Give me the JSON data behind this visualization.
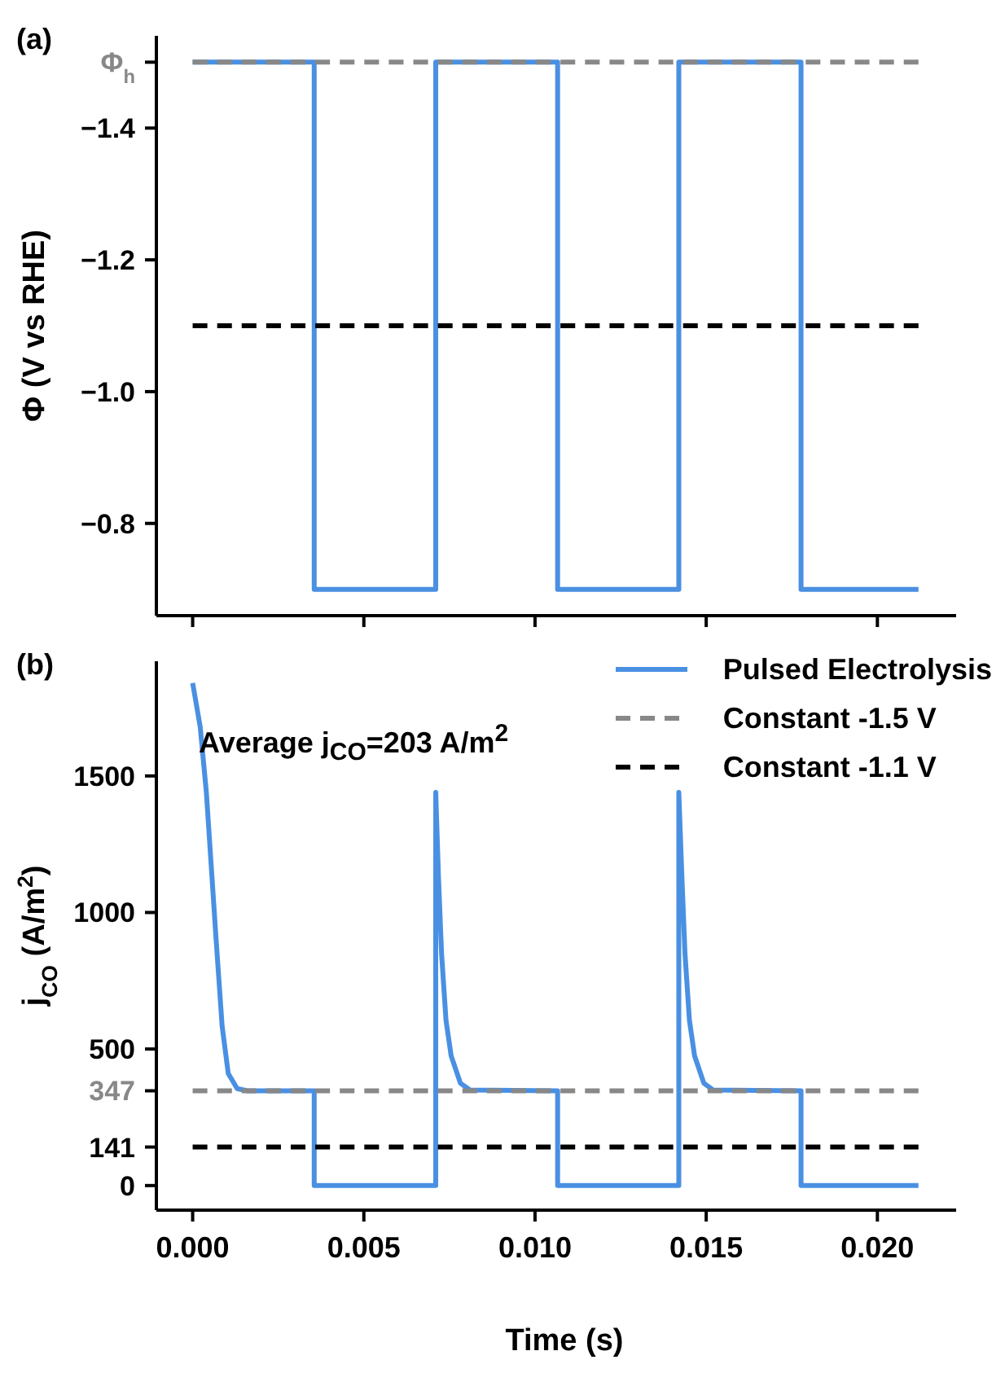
{
  "chart_data": [
    {
      "type": "line",
      "title": "(a)",
      "ylabel": "Φ (V vs RHE)",
      "xlim": [
        -0.00106,
        0.0223
      ],
      "ylim": [
        -0.66,
        -1.54
      ],
      "xticks": [
        0,
        0.005,
        0.01,
        0.015,
        0.02
      ],
      "yticks": [
        {
          "value": -1.5,
          "label": "Φ$_{h}$"
        },
        {
          "value": -1.4,
          "label": "−1.4"
        },
        {
          "value": -1.2,
          "label": "−1.2"
        },
        {
          "value": -1,
          "label": "−1.0"
        },
        {
          "value": -0.8,
          "label": "−0.8"
        }
      ],
      "tick_labels": "y",
      "grid": false,
      "legend": false,
      "marker": "none",
      "line_style": "solid",
      "series": [
        {
          "color": "#4a90e2",
          "x": [
            0,
            0.00355,
            0.00355,
            0.0071,
            0.0071,
            0.01066,
            0.01066,
            0.0142,
            0.0142,
            0.01777,
            0.01777,
            0.0212
          ],
          "values": [
            -1.5,
            -1.5,
            -0.7,
            -0.7,
            -1.5,
            -1.5,
            -0.7,
            -0.7,
            -1.5,
            -1.5,
            -0.7,
            -0.7
          ]
        },
        {
          "color": "#888888",
          "line_style": "dashed",
          "x": [
            0,
            0.0212
          ],
          "values": [
            -1.5,
            -1.5
          ]
        },
        {
          "color": "#000000",
          "line_style": "dashed",
          "x": [
            0,
            0.0212
          ],
          "values": [
            -1.1,
            -1.1
          ]
        }
      ]
    },
    {
      "type": "line",
      "title": "(b)",
      "xlabel": "Time (s)",
      "ylabel": "j$_{CO}$ (A/m$^{2}$)",
      "annotations": [
        "Average j$_{CO}$=203 A/m$^{2}$"
      ],
      "xlim": [
        -0.00106,
        0.0223
      ],
      "ylim": [
        -90,
        1920
      ],
      "xticks": [
        {
          "value": 0,
          "label": "0.000"
        },
        {
          "value": 0.005,
          "label": "0.005"
        },
        {
          "value": 0.01,
          "label": "0.010"
        },
        {
          "value": 0.015,
          "label": "0.015"
        },
        {
          "value": 0.02,
          "label": "0.020"
        }
      ],
      "yticks": [
        0,
        141,
        347,
        500,
        1000,
        1500
      ],
      "grid": false,
      "legend": "top right",
      "marker": "none",
      "line_style": "solid",
      "series": [
        {
          "name": "Pulsed Electrolysis",
          "color": "#4a90e2",
          "x": [
            0,
            0.00022,
            0.0004,
            0.00068,
            0.00086,
            0.00104,
            0.0013,
            0.0016,
            0.00355,
            0.00355,
            0.0071,
            0.0071,
            0.00718,
            0.00727,
            0.0074,
            0.00755,
            0.00782,
            0.0081,
            0.01066,
            0.01066,
            0.0142,
            0.0142,
            0.01429,
            0.01438,
            0.01451,
            0.01466,
            0.01493,
            0.0152,
            0.01777,
            0.01777,
            0.0212
          ],
          "values": [
            1840,
            1680,
            1440,
            910,
            585,
            410,
            355,
            347,
            347,
            0,
            0,
            1440,
            1130,
            850,
            605,
            475,
            375,
            350,
            347,
            0,
            0,
            1440,
            1130,
            850,
            605,
            475,
            375,
            350,
            347,
            0,
            0
          ]
        },
        {
          "name": "Constant -1.5 V",
          "color": "#888888",
          "line_style": "dashed",
          "x": [
            0,
            0.0212
          ],
          "values": [
            347,
            347
          ]
        },
        {
          "name": "Constant -1.1 V",
          "color": "#000000",
          "line_style": "dashed",
          "x": [
            0,
            0.0212
          ],
          "values": [
            141,
            141
          ]
        }
      ]
    }
  ]
}
